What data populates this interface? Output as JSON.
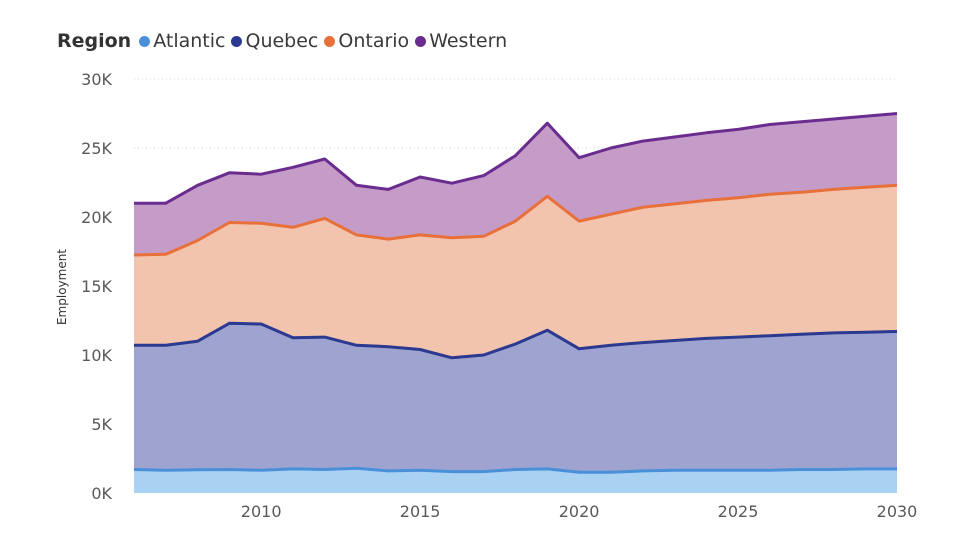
{
  "chart_data": {
    "type": "area",
    "stacked": true,
    "legend_title": "Region",
    "ylabel": "Employment",
    "xlabel": "",
    "xlim": [
      2006,
      2030
    ],
    "ylim": [
      0,
      30000
    ],
    "x_ticks": [
      2010,
      2015,
      2020,
      2025,
      2030
    ],
    "x_tick_labels": [
      "2010",
      "2015",
      "2020",
      "2025",
      "2030"
    ],
    "y_ticks": [
      0,
      5000,
      10000,
      15000,
      20000,
      25000,
      30000
    ],
    "y_tick_labels": [
      "0K",
      "5K",
      "10K",
      "15K",
      "20K",
      "25K",
      "30K"
    ],
    "x": [
      2006,
      2007,
      2008,
      2009,
      2010,
      2011,
      2012,
      2013,
      2014,
      2015,
      2016,
      2017,
      2018,
      2019,
      2020,
      2021,
      2022,
      2023,
      2024,
      2025,
      2026,
      2027,
      2028,
      2029,
      2030
    ],
    "series": [
      {
        "name": "Atlantic",
        "line_color": "#4a90d9",
        "fill_color": "#a9d1f2",
        "values": [
          1700,
          1650,
          1680,
          1700,
          1650,
          1750,
          1700,
          1800,
          1600,
          1650,
          1550,
          1550,
          1700,
          1750,
          1500,
          1500,
          1600,
          1650,
          1650,
          1650,
          1650,
          1700,
          1700,
          1750,
          1750
        ]
      },
      {
        "name": "Quebec",
        "line_color": "#2b3990",
        "fill_color": "#9fa3cf",
        "values": [
          9000,
          9050,
          9320,
          10600,
          10600,
          9500,
          9600,
          8900,
          9000,
          8750,
          8250,
          8450,
          9100,
          10050,
          8950,
          9200,
          9300,
          9400,
          9550,
          9650,
          9750,
          9800,
          9900,
          9900,
          9950
        ]
      },
      {
        "name": "Ontario",
        "line_color": "#e8703a",
        "fill_color": "#f2c3ad",
        "values": [
          6550,
          6600,
          7300,
          7300,
          7300,
          8000,
          8600,
          8000,
          7800,
          8300,
          8700,
          8600,
          8900,
          9700,
          9250,
          9500,
          9800,
          9900,
          10000,
          10100,
          10250,
          10300,
          10400,
          10500,
          10600
        ]
      },
      {
        "name": "Western",
        "line_color": "#6a2c8f",
        "fill_color": "#c59cc8",
        "values": [
          3750,
          3700,
          4000,
          3600,
          3550,
          4350,
          4300,
          3600,
          3600,
          4200,
          3950,
          4400,
          4750,
          5300,
          4600,
          4800,
          4800,
          4850,
          4900,
          4950,
          5050,
          5100,
          5100,
          5150,
          5200
        ]
      }
    ]
  }
}
